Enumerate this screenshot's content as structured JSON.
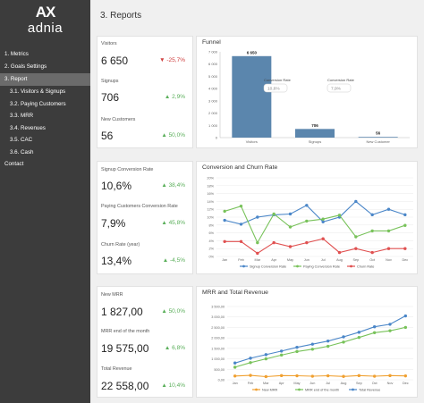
{
  "sidebar": {
    "logo_mark": "AX",
    "logo_text": "adnia",
    "items": [
      {
        "label": "1. Metrics"
      },
      {
        "label": "2. Goals Settings"
      },
      {
        "label": "3. Report"
      },
      {
        "label": "3.1. Visitors & Signups"
      },
      {
        "label": "3.2. Paying Customers"
      },
      {
        "label": "3.3. MRR"
      },
      {
        "label": "3.4. Revenues"
      },
      {
        "label": "3.5. CAC"
      },
      {
        "label": "3.6. Cash"
      },
      {
        "label": "Contact"
      }
    ]
  },
  "page": {
    "title": "3. Reports"
  },
  "kpis": {
    "visitors": {
      "label": "Visitors",
      "value": "6 650",
      "delta": "-25,7%"
    },
    "signups": {
      "label": "Signups",
      "value": "706",
      "delta": "2,9%"
    },
    "new_customers": {
      "label": "New Customers",
      "value": "56",
      "delta": "50,0%"
    },
    "signup_conv": {
      "label": "Signup Conversion Rate",
      "value": "10,6%",
      "delta": "38,4%"
    },
    "paying_conv": {
      "label": "Paying Customers Conversion Rate",
      "value": "7,9%",
      "delta": "45,8%"
    },
    "churn": {
      "label": "Churn Rate (year)",
      "value": "13,4%",
      "delta": "-4,5%"
    },
    "new_mrr": {
      "label": "New MRR",
      "value": "1 827,00",
      "delta": "50,0%"
    },
    "mrr_end": {
      "label": "MRR end of the month",
      "value": "19 575,00",
      "delta": "6,8%"
    },
    "total_revenue": {
      "label": "Total Revenue",
      "value": "22 558,00",
      "delta": "10,4%"
    }
  },
  "colors": {
    "up": "#5aaf5a",
    "down": "#d04040",
    "blue": "#4a86c8",
    "green": "#78c25a",
    "red": "#e05050",
    "orange": "#f0a030",
    "bar": "#5b86ad"
  },
  "chart_data": [
    {
      "type": "bar",
      "title": "Funnel",
      "categories": [
        "Visitors",
        "Signups",
        "New Customer"
      ],
      "values": [
        6650,
        706,
        56
      ],
      "value_labels": [
        "6 650",
        "706",
        "56"
      ],
      "ylim": [
        0,
        7000
      ],
      "yticks": [
        "0",
        "1 000",
        "2 000",
        "3 000",
        "4 000",
        "5 000",
        "6 000",
        "7 000"
      ],
      "annotations": [
        {
          "label": "Conversion Rate",
          "value": "10,6%"
        },
        {
          "label": "Conversion Rate",
          "value": "7,9%"
        }
      ]
    },
    {
      "type": "line",
      "title": "Conversion and Churn Rate",
      "categories": [
        "Jan",
        "Feb",
        "Mar",
        "Apr",
        "May",
        "Jun",
        "Jul",
        "Aug",
        "Sep",
        "Oct",
        "Nov",
        "Dec"
      ],
      "ylim": [
        0,
        20
      ],
      "yticks": [
        "0%",
        "2%",
        "4%",
        "6%",
        "8%",
        "10%",
        "12%",
        "14%",
        "16%",
        "18%",
        "20%"
      ],
      "series": [
        {
          "name": "Signup Conversion Rate",
          "color": "#4a86c8",
          "values": [
            9.2,
            8.2,
            10.0,
            10.6,
            10.8,
            13.0,
            8.8,
            10.0,
            14.0,
            10.6,
            12.0,
            10.6
          ]
        },
        {
          "name": "Paying Conversion Rate",
          "color": "#78c25a",
          "values": [
            11.5,
            12.8,
            3.5,
            10.8,
            7.5,
            9.0,
            9.5,
            10.5,
            5.0,
            6.5,
            6.5,
            7.9
          ]
        },
        {
          "name": "Churn Rate",
          "color": "#e05050",
          "values": [
            3.8,
            3.8,
            0.8,
            3.5,
            2.5,
            3.5,
            4.5,
            1.0,
            2.0,
            1.0,
            2.0,
            2.0
          ]
        }
      ]
    },
    {
      "type": "line",
      "title": "MRR and Total Revenue",
      "categories": [
        "Jan",
        "Feb",
        "Mar",
        "Apr",
        "May",
        "Jun",
        "Jul",
        "Aug",
        "Sep",
        "Oct",
        "Nov",
        "Dec"
      ],
      "ylim": [
        0,
        3500
      ],
      "yticks": [
        "0,00",
        "500,00",
        "1 000,00",
        "1 500,00",
        "2 000,00",
        "2 500,00",
        "3 000,00",
        "3 500,00"
      ],
      "series": [
        {
          "name": "New MRR",
          "color": "#f0a030",
          "values": [
            180,
            210,
            150,
            200,
            190,
            170,
            190,
            160,
            200,
            170,
            200,
            185
          ]
        },
        {
          "name": "MRR end of the month",
          "color": "#78c25a",
          "values": [
            600,
            820,
            1000,
            1180,
            1350,
            1460,
            1600,
            1800,
            2020,
            2250,
            2340,
            2500
          ]
        },
        {
          "name": "Total Revenue",
          "color": "#4a86c8",
          "values": [
            800,
            1030,
            1200,
            1370,
            1550,
            1700,
            1850,
            2050,
            2270,
            2530,
            2650,
            3050
          ]
        }
      ]
    }
  ]
}
